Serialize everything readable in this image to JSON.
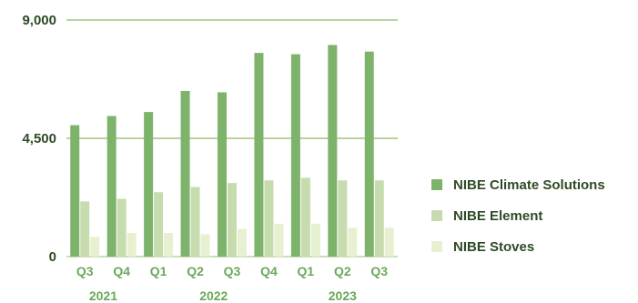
{
  "chart_data": {
    "type": "bar",
    "categories": [
      "Q3",
      "Q4",
      "Q1",
      "Q2",
      "Q3",
      "Q4",
      "Q1",
      "Q2",
      "Q3"
    ],
    "year_labels": [
      {
        "label": "2021",
        "span": [
          0,
          1
        ]
      },
      {
        "label": "2022",
        "span": [
          2,
          5
        ]
      },
      {
        "label": "2023",
        "span": [
          6,
          8
        ]
      }
    ],
    "series": [
      {
        "name": "NIBE Climate Solutions",
        "color": "#7db36b",
        "values": [
          5000,
          5350,
          5500,
          6300,
          6250,
          7750,
          7700,
          8050,
          7800
        ]
      },
      {
        "name": "NIBE Element",
        "color": "#c7dcae",
        "values": [
          2100,
          2200,
          2450,
          2650,
          2800,
          2900,
          3000,
          2900,
          2900
        ]
      },
      {
        "name": "NIBE Stoves",
        "color": "#e8f0d2",
        "values": [
          750,
          900,
          900,
          850,
          1050,
          1250,
          1250,
          1100,
          1100
        ]
      }
    ],
    "yticks": [
      0,
      4500,
      9000
    ],
    "ytick_labels": [
      "0",
      "4,500",
      "9,000"
    ],
    "ylim": [
      0,
      9000
    ],
    "grid": true,
    "legend_position": "right",
    "title": "",
    "xlabel": "",
    "ylabel": ""
  }
}
